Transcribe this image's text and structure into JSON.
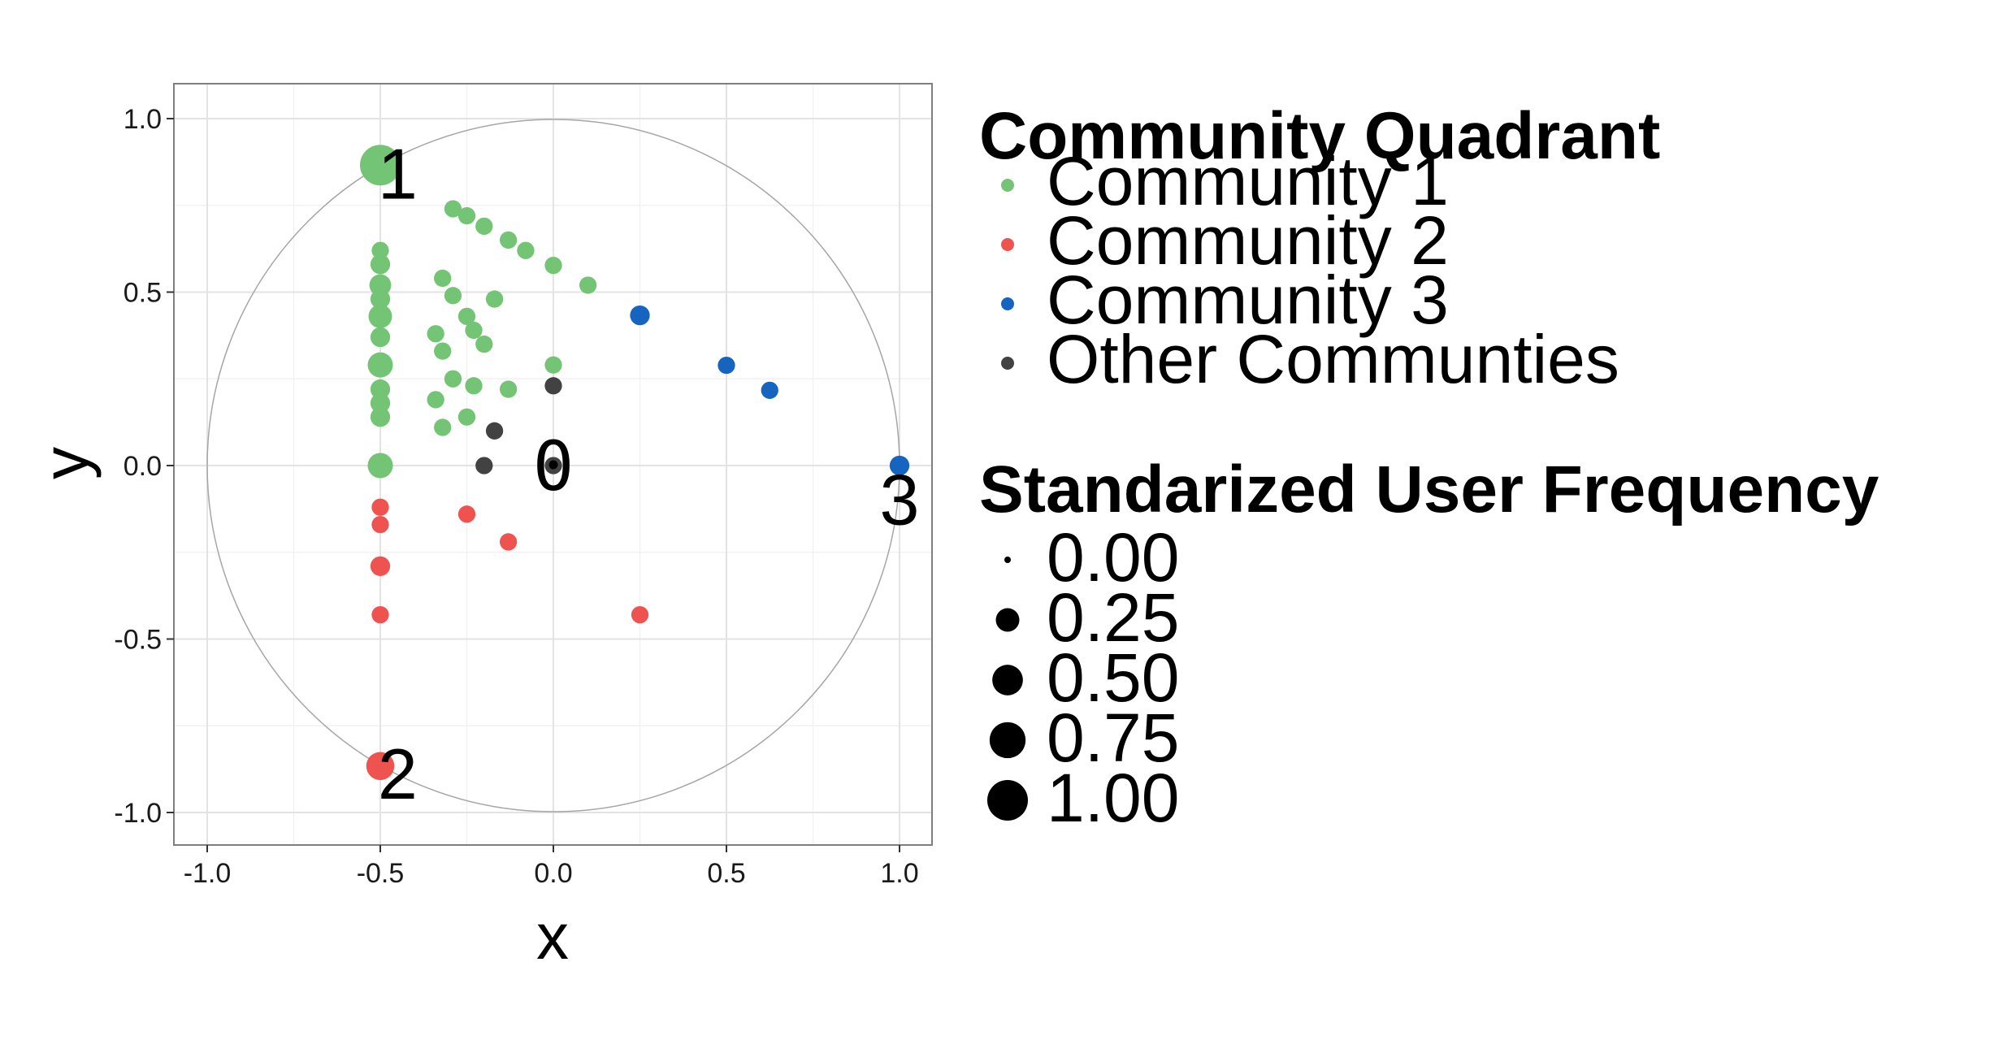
{
  "chart_data": {
    "type": "scatter",
    "xlabel": "x",
    "ylabel": "y",
    "xlim": [
      -1.1,
      1.1
    ],
    "ylim": [
      -1.1,
      1.1
    ],
    "x_ticks": [
      -1.0,
      -0.5,
      0.0,
      0.5,
      1.0
    ],
    "y_ticks": [
      -1.0,
      -0.5,
      0.0,
      0.5,
      1.0
    ],
    "x_tick_labels": [
      "-1.0",
      "-0.5",
      "0.0",
      "0.5",
      "1.0"
    ],
    "y_tick_labels": [
      "-1.0",
      "-0.5",
      "0.0",
      "0.5",
      "1.0"
    ],
    "grid": true,
    "unit_circle": true,
    "annotations": [
      {
        "text": "1",
        "x": -0.45,
        "y": 0.84
      },
      {
        "text": "2",
        "x": -0.45,
        "y": -0.89
      },
      {
        "text": "3",
        "x": 1.0,
        "y": -0.1
      },
      {
        "text": "0",
        "x": 0.0,
        "y": 0.0
      }
    ],
    "legend": {
      "placement": "right",
      "color_title": "Community Quadrant",
      "size_title": "Standarized User Frequency",
      "size_breaks": [
        "0.00",
        "0.25",
        "0.50",
        "0.75",
        "1.00"
      ],
      "size_values": [
        0.0,
        0.25,
        0.5,
        0.75,
        1.0
      ]
    },
    "series": [
      {
        "name": "Community 1",
        "color": "#74c476",
        "points": [
          {
            "x": -0.5,
            "y": 0.866,
            "size": 1.0
          },
          {
            "x": -0.5,
            "y": 0.62,
            "size": 0.1
          },
          {
            "x": -0.5,
            "y": 0.58,
            "size": 0.15
          },
          {
            "x": -0.5,
            "y": 0.52,
            "size": 0.2
          },
          {
            "x": -0.5,
            "y": 0.48,
            "size": 0.15
          },
          {
            "x": -0.5,
            "y": 0.43,
            "size": 0.25
          },
          {
            "x": -0.5,
            "y": 0.37,
            "size": 0.15
          },
          {
            "x": -0.5,
            "y": 0.29,
            "size": 0.3
          },
          {
            "x": -0.5,
            "y": 0.22,
            "size": 0.15
          },
          {
            "x": -0.5,
            "y": 0.18,
            "size": 0.15
          },
          {
            "x": -0.5,
            "y": 0.14,
            "size": 0.15
          },
          {
            "x": -0.5,
            "y": 0.0,
            "size": 0.3
          },
          {
            "x": -0.29,
            "y": 0.74,
            "size": 0.1
          },
          {
            "x": -0.25,
            "y": 0.72,
            "size": 0.1
          },
          {
            "x": -0.2,
            "y": 0.69,
            "size": 0.1
          },
          {
            "x": -0.13,
            "y": 0.65,
            "size": 0.1
          },
          {
            "x": -0.08,
            "y": 0.62,
            "size": 0.1
          },
          {
            "x": 0.0,
            "y": 0.577,
            "size": 0.1
          },
          {
            "x": 0.1,
            "y": 0.52,
            "size": 0.1
          },
          {
            "x": -0.32,
            "y": 0.54,
            "size": 0.1
          },
          {
            "x": -0.29,
            "y": 0.49,
            "size": 0.1
          },
          {
            "x": -0.17,
            "y": 0.48,
            "size": 0.1
          },
          {
            "x": -0.25,
            "y": 0.43,
            "size": 0.1
          },
          {
            "x": -0.34,
            "y": 0.38,
            "size": 0.1
          },
          {
            "x": -0.23,
            "y": 0.39,
            "size": 0.1
          },
          {
            "x": -0.2,
            "y": 0.35,
            "size": 0.1
          },
          {
            "x": -0.32,
            "y": 0.33,
            "size": 0.1
          },
          {
            "x": 0.0,
            "y": 0.29,
            "size": 0.1
          },
          {
            "x": -0.29,
            "y": 0.25,
            "size": 0.1
          },
          {
            "x": -0.23,
            "y": 0.23,
            "size": 0.1
          },
          {
            "x": -0.13,
            "y": 0.22,
            "size": 0.1
          },
          {
            "x": -0.34,
            "y": 0.19,
            "size": 0.1
          },
          {
            "x": -0.25,
            "y": 0.14,
            "size": 0.1
          },
          {
            "x": -0.32,
            "y": 0.11,
            "size": 0.1
          }
        ]
      },
      {
        "name": "Community 2",
        "color": "#ef5350",
        "points": [
          {
            "x": -0.5,
            "y": -0.866,
            "size": 0.4
          },
          {
            "x": -0.5,
            "y": -0.12,
            "size": 0.1
          },
          {
            "x": -0.5,
            "y": -0.17,
            "size": 0.1
          },
          {
            "x": -0.5,
            "y": -0.29,
            "size": 0.15
          },
          {
            "x": -0.5,
            "y": -0.43,
            "size": 0.1
          },
          {
            "x": -0.25,
            "y": -0.14,
            "size": 0.1
          },
          {
            "x": -0.13,
            "y": -0.22,
            "size": 0.1
          },
          {
            "x": 0.25,
            "y": -0.43,
            "size": 0.1
          }
        ]
      },
      {
        "name": "Community 3",
        "color": "#1565c0",
        "points": [
          {
            "x": 1.0,
            "y": 0.0,
            "size": 0.15
          },
          {
            "x": 0.25,
            "y": 0.433,
            "size": 0.15
          },
          {
            "x": 0.5,
            "y": 0.289,
            "size": 0.1
          },
          {
            "x": 0.625,
            "y": 0.217,
            "size": 0.1
          }
        ]
      },
      {
        "name": "Other Communties",
        "color": "#424242",
        "points": [
          {
            "x": 0.0,
            "y": 0.0,
            "size": 0.1
          },
          {
            "x": 0.0,
            "y": 0.23,
            "size": 0.1
          },
          {
            "x": -0.17,
            "y": 0.1,
            "size": 0.1
          },
          {
            "x": -0.2,
            "y": 0.0,
            "size": 0.1
          }
        ]
      }
    ]
  }
}
